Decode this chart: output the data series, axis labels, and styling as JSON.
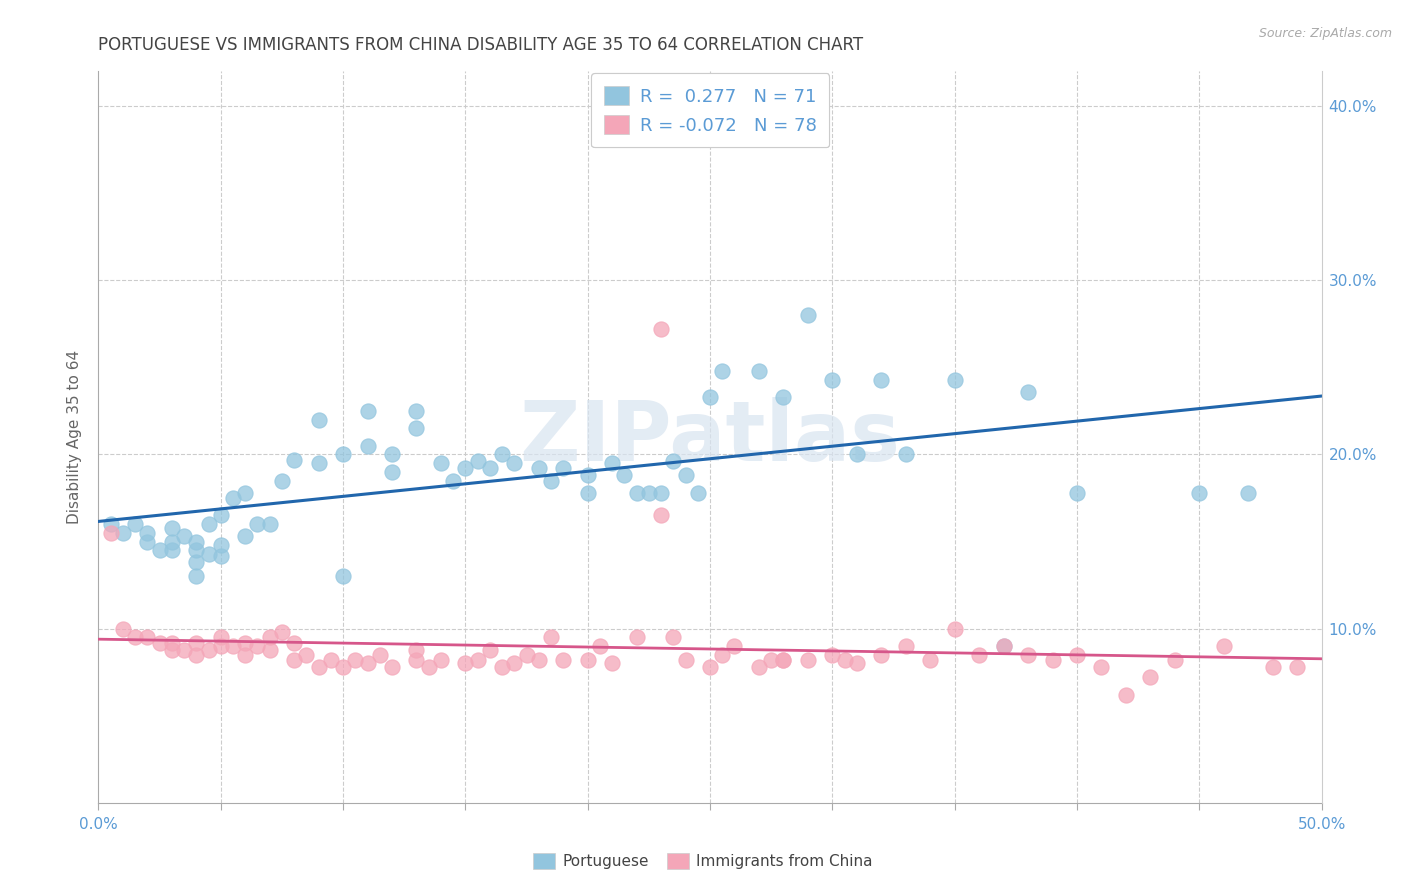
{
  "title": "PORTUGUESE VS IMMIGRANTS FROM CHINA DISABILITY AGE 35 TO 64 CORRELATION CHART",
  "source": "Source: ZipAtlas.com",
  "ylabel": "Disability Age 35 to 64",
  "xlim": [
    0.0,
    0.5
  ],
  "ylim": [
    0.0,
    0.42
  ],
  "xticks": [
    0.0,
    0.1,
    0.2,
    0.3,
    0.4,
    0.5
  ],
  "yticks": [
    0.1,
    0.2,
    0.3,
    0.4
  ],
  "xticklabels": [
    "0.0%",
    "",
    "",
    "",
    "",
    "50.0%"
  ],
  "yticklabels_right": [
    "10.0%",
    "20.0%",
    "30.0%",
    "40.0%"
  ],
  "legend_label1": "Portuguese",
  "legend_label2": "Immigrants from China",
  "R1": 0.277,
  "N1": 71,
  "R2": -0.072,
  "N2": 78,
  "color1": "#92c5de",
  "color2": "#f4a6b8",
  "line_color1": "#2166ac",
  "line_color2": "#d6568a",
  "watermark": "ZIPatlas",
  "tick_color": "#5b9bd5",
  "scatter1_x": [
    0.005,
    0.01,
    0.015,
    0.02,
    0.02,
    0.025,
    0.03,
    0.03,
    0.03,
    0.035,
    0.04,
    0.04,
    0.04,
    0.04,
    0.045,
    0.045,
    0.05,
    0.05,
    0.05,
    0.055,
    0.06,
    0.06,
    0.065,
    0.07,
    0.075,
    0.08,
    0.09,
    0.09,
    0.1,
    0.1,
    0.11,
    0.11,
    0.12,
    0.12,
    0.13,
    0.13,
    0.14,
    0.145,
    0.15,
    0.155,
    0.16,
    0.165,
    0.17,
    0.18,
    0.185,
    0.19,
    0.2,
    0.2,
    0.21,
    0.215,
    0.22,
    0.225,
    0.23,
    0.235,
    0.24,
    0.245,
    0.25,
    0.255,
    0.27,
    0.28,
    0.29,
    0.3,
    0.31,
    0.32,
    0.33,
    0.35,
    0.37,
    0.38,
    0.4,
    0.45,
    0.47
  ],
  "scatter1_y": [
    0.16,
    0.155,
    0.16,
    0.15,
    0.155,
    0.145,
    0.145,
    0.15,
    0.158,
    0.153,
    0.13,
    0.138,
    0.145,
    0.15,
    0.143,
    0.16,
    0.142,
    0.148,
    0.165,
    0.175,
    0.153,
    0.178,
    0.16,
    0.16,
    0.185,
    0.197,
    0.195,
    0.22,
    0.13,
    0.2,
    0.205,
    0.225,
    0.19,
    0.2,
    0.215,
    0.225,
    0.195,
    0.185,
    0.192,
    0.196,
    0.192,
    0.2,
    0.195,
    0.192,
    0.185,
    0.192,
    0.178,
    0.188,
    0.195,
    0.188,
    0.178,
    0.178,
    0.178,
    0.196,
    0.188,
    0.178,
    0.233,
    0.248,
    0.248,
    0.233,
    0.28,
    0.243,
    0.2,
    0.243,
    0.2,
    0.243,
    0.09,
    0.236,
    0.178,
    0.178,
    0.178
  ],
  "scatter2_x": [
    0.005,
    0.01,
    0.015,
    0.02,
    0.025,
    0.03,
    0.03,
    0.035,
    0.04,
    0.04,
    0.045,
    0.05,
    0.05,
    0.055,
    0.06,
    0.06,
    0.065,
    0.07,
    0.07,
    0.075,
    0.08,
    0.085,
    0.09,
    0.095,
    0.1,
    0.105,
    0.11,
    0.115,
    0.12,
    0.13,
    0.135,
    0.14,
    0.15,
    0.155,
    0.16,
    0.165,
    0.17,
    0.175,
    0.18,
    0.185,
    0.19,
    0.2,
    0.205,
    0.21,
    0.22,
    0.23,
    0.235,
    0.24,
    0.25,
    0.255,
    0.26,
    0.27,
    0.275,
    0.28,
    0.29,
    0.3,
    0.305,
    0.31,
    0.32,
    0.33,
    0.34,
    0.35,
    0.36,
    0.37,
    0.38,
    0.39,
    0.4,
    0.41,
    0.42,
    0.43,
    0.44,
    0.46,
    0.48,
    0.49,
    0.23,
    0.13,
    0.08,
    0.28
  ],
  "scatter2_y": [
    0.155,
    0.1,
    0.095,
    0.095,
    0.092,
    0.088,
    0.092,
    0.088,
    0.085,
    0.092,
    0.088,
    0.09,
    0.095,
    0.09,
    0.085,
    0.092,
    0.09,
    0.088,
    0.095,
    0.098,
    0.082,
    0.085,
    0.078,
    0.082,
    0.078,
    0.082,
    0.08,
    0.085,
    0.078,
    0.082,
    0.078,
    0.082,
    0.08,
    0.082,
    0.088,
    0.078,
    0.08,
    0.085,
    0.082,
    0.095,
    0.082,
    0.082,
    0.09,
    0.08,
    0.095,
    0.272,
    0.095,
    0.082,
    0.078,
    0.085,
    0.09,
    0.078,
    0.082,
    0.082,
    0.082,
    0.085,
    0.082,
    0.08,
    0.085,
    0.09,
    0.082,
    0.1,
    0.085,
    0.09,
    0.085,
    0.082,
    0.085,
    0.078,
    0.062,
    0.072,
    0.082,
    0.09,
    0.078,
    0.078,
    0.165,
    0.088,
    0.092,
    0.082
  ]
}
